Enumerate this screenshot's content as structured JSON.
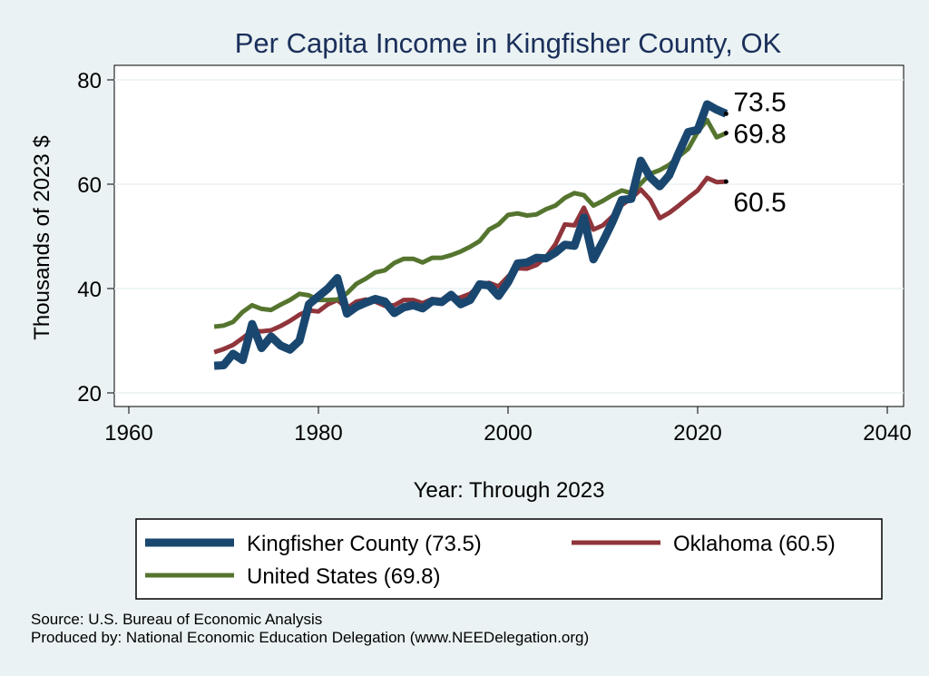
{
  "chart_data": {
    "type": "line",
    "title": "Per Capita Income in Kingfisher County, OK",
    "xlabel": "Year: Through 2023",
    "ylabel": "Thousands of 2023 $",
    "xlim": [
      1960,
      2040
    ],
    "ylim": [
      20,
      80
    ],
    "xticks": [
      1960,
      1980,
      2000,
      2020,
      2040
    ],
    "yticks": [
      20,
      40,
      60,
      80
    ],
    "grid": true,
    "x": [
      1969,
      1970,
      1971,
      1972,
      1973,
      1974,
      1975,
      1976,
      1977,
      1978,
      1979,
      1980,
      1981,
      1982,
      1983,
      1984,
      1985,
      1986,
      1987,
      1988,
      1989,
      1990,
      1991,
      1992,
      1993,
      1994,
      1995,
      1996,
      1997,
      1998,
      1999,
      2000,
      2001,
      2002,
      2003,
      2004,
      2005,
      2006,
      2007,
      2008,
      2009,
      2010,
      2011,
      2012,
      2013,
      2014,
      2015,
      2016,
      2017,
      2018,
      2019,
      2020,
      2021,
      2022,
      2023
    ],
    "series": [
      {
        "name": "Kingfisher County",
        "legend": "Kingfisher County (73.5)",
        "end_label": "73.5",
        "color": "#1a476f",
        "width": 9,
        "values": [
          25.2,
          25.3,
          27.5,
          26.3,
          33.2,
          28.6,
          30.8,
          29.1,
          28.3,
          30.0,
          37.0,
          38.5,
          40.0,
          42.0,
          35.2,
          36.5,
          37.3,
          38.0,
          37.5,
          35.3,
          36.4,
          36.8,
          36.2,
          37.6,
          37.4,
          38.8,
          37.0,
          37.8,
          40.8,
          40.6,
          38.6,
          41.2,
          44.8,
          45.0,
          45.9,
          45.8,
          46.9,
          48.4,
          48.2,
          53.6,
          45.6,
          49.0,
          52.7,
          57.0,
          57.2,
          64.5,
          61.3,
          59.6,
          61.7,
          66.0,
          70.0,
          70.4,
          75.3,
          74.3,
          73.5
        ]
      },
      {
        "name": "United States",
        "legend": "United States (69.8)",
        "end_label": "69.8",
        "color": "#55752f",
        "width": 5,
        "values": [
          32.7,
          32.9,
          33.6,
          35.5,
          36.8,
          36.1,
          35.9,
          36.9,
          37.8,
          39.0,
          38.7,
          37.8,
          37.8,
          37.9,
          39.1,
          40.9,
          41.9,
          43.1,
          43.5,
          44.9,
          45.7,
          45.7,
          45.0,
          45.9,
          45.9,
          46.4,
          47.1,
          48.0,
          49.1,
          51.3,
          52.3,
          54.1,
          54.4,
          54.0,
          54.2,
          55.2,
          55.9,
          57.4,
          58.3,
          57.9,
          55.9,
          56.8,
          57.9,
          58.8,
          58.3,
          60.1,
          62.0,
          62.7,
          63.7,
          65.3,
          66.8,
          70.0,
          72.3,
          69.0,
          69.8
        ]
      },
      {
        "name": "Oklahoma",
        "legend": "Oklahoma (60.5)",
        "end_label": "60.5",
        "color": "#90353b",
        "width": 5,
        "values": [
          27.8,
          28.4,
          29.2,
          30.5,
          31.9,
          31.8,
          32.0,
          32.8,
          33.8,
          35.0,
          35.8,
          35.6,
          37.0,
          37.8,
          36.2,
          37.5,
          37.9,
          37.5,
          36.7,
          36.8,
          37.8,
          37.8,
          37.2,
          38.0,
          37.8,
          38.1,
          38.3,
          39.0,
          40.6,
          41.1,
          40.4,
          42.3,
          43.9,
          43.8,
          44.5,
          46.0,
          48.5,
          52.3,
          52.1,
          55.5,
          51.3,
          52.1,
          53.8,
          56.0,
          57.3,
          59.0,
          57.0,
          53.5,
          54.5,
          55.9,
          57.4,
          58.8,
          61.2,
          60.4,
          60.5
        ]
      }
    ],
    "legend_position": "bottom"
  },
  "notes": {
    "source": "Source: U.S. Bureau of Economic Analysis",
    "produced": "Produced by: National Economic Education Delegation (www.NEEDelegation.org)"
  }
}
